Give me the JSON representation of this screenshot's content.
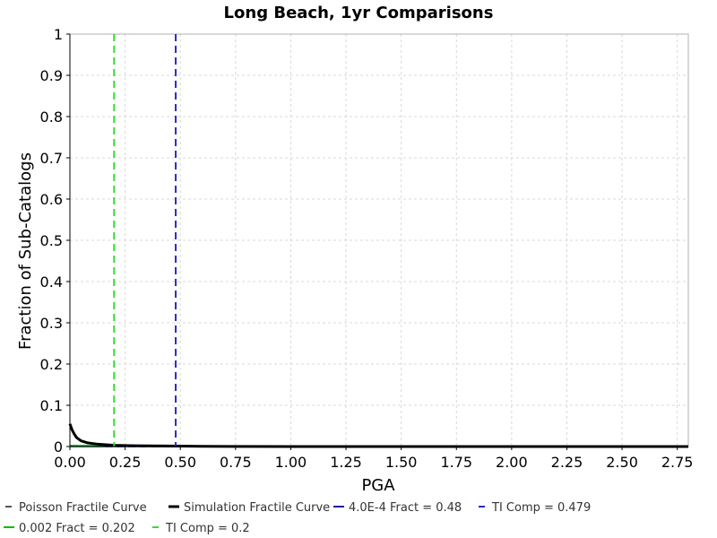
{
  "chart_data": {
    "type": "line",
    "title": "Long Beach, 1yr Comparisons",
    "xlabel": "PGA",
    "ylabel": "Fraction of Sub-Catalogs",
    "xlim": [
      0,
      2.8
    ],
    "ylim": [
      0,
      1
    ],
    "x_ticks": [
      "0.00",
      "0.25",
      "0.50",
      "0.75",
      "1.00",
      "1.25",
      "1.50",
      "1.75",
      "2.00",
      "2.25",
      "2.50",
      "2.75"
    ],
    "y_ticks": [
      "0",
      "0.1",
      "0.2",
      "0.3",
      "0.4",
      "0.5",
      "0.6",
      "0.7",
      "0.8",
      "0.9",
      "1"
    ],
    "grid": true,
    "legend_position": "bottom",
    "series": [
      {
        "name": "Poisson Fractile Curve",
        "color": "#555555",
        "style": "dashed",
        "x": [
          0,
          0.1,
          0.2,
          0.5,
          1.0,
          2.8
        ],
        "y": [
          0.002,
          0.001,
          0.0005,
          0.0002,
          0,
          0
        ]
      },
      {
        "name": "Simulation Fractile Curve",
        "color": "#000000",
        "style": "solid",
        "x": [
          0,
          0.01,
          0.02,
          0.03,
          0.05,
          0.08,
          0.12,
          0.2,
          0.3,
          0.5,
          0.6,
          1.0,
          2.8
        ],
        "y": [
          0.055,
          0.04,
          0.03,
          0.022,
          0.014,
          0.009,
          0.006,
          0.003,
          0.002,
          0.001,
          0.0005,
          0,
          0
        ]
      },
      {
        "name": "4.0E-4 Fract = 0.48",
        "color": "#1a1aa0",
        "style": "solid",
        "x": [
          0,
          2.8
        ],
        "y": [
          0.0004,
          0.0004
        ]
      },
      {
        "name": "TI Comp = 0.479",
        "color": "#2a2acc",
        "style": "dashed",
        "vline": 0.479
      },
      {
        "name": "0.002 Fract = 0.202",
        "color": "#00bb00",
        "style": "solid",
        "x": [
          0,
          0.202
        ],
        "y": [
          0.002,
          0.002
        ]
      },
      {
        "name": "TI Comp = 0.2",
        "color": "#33dd33",
        "style": "dashed",
        "vline": 0.2
      }
    ]
  }
}
